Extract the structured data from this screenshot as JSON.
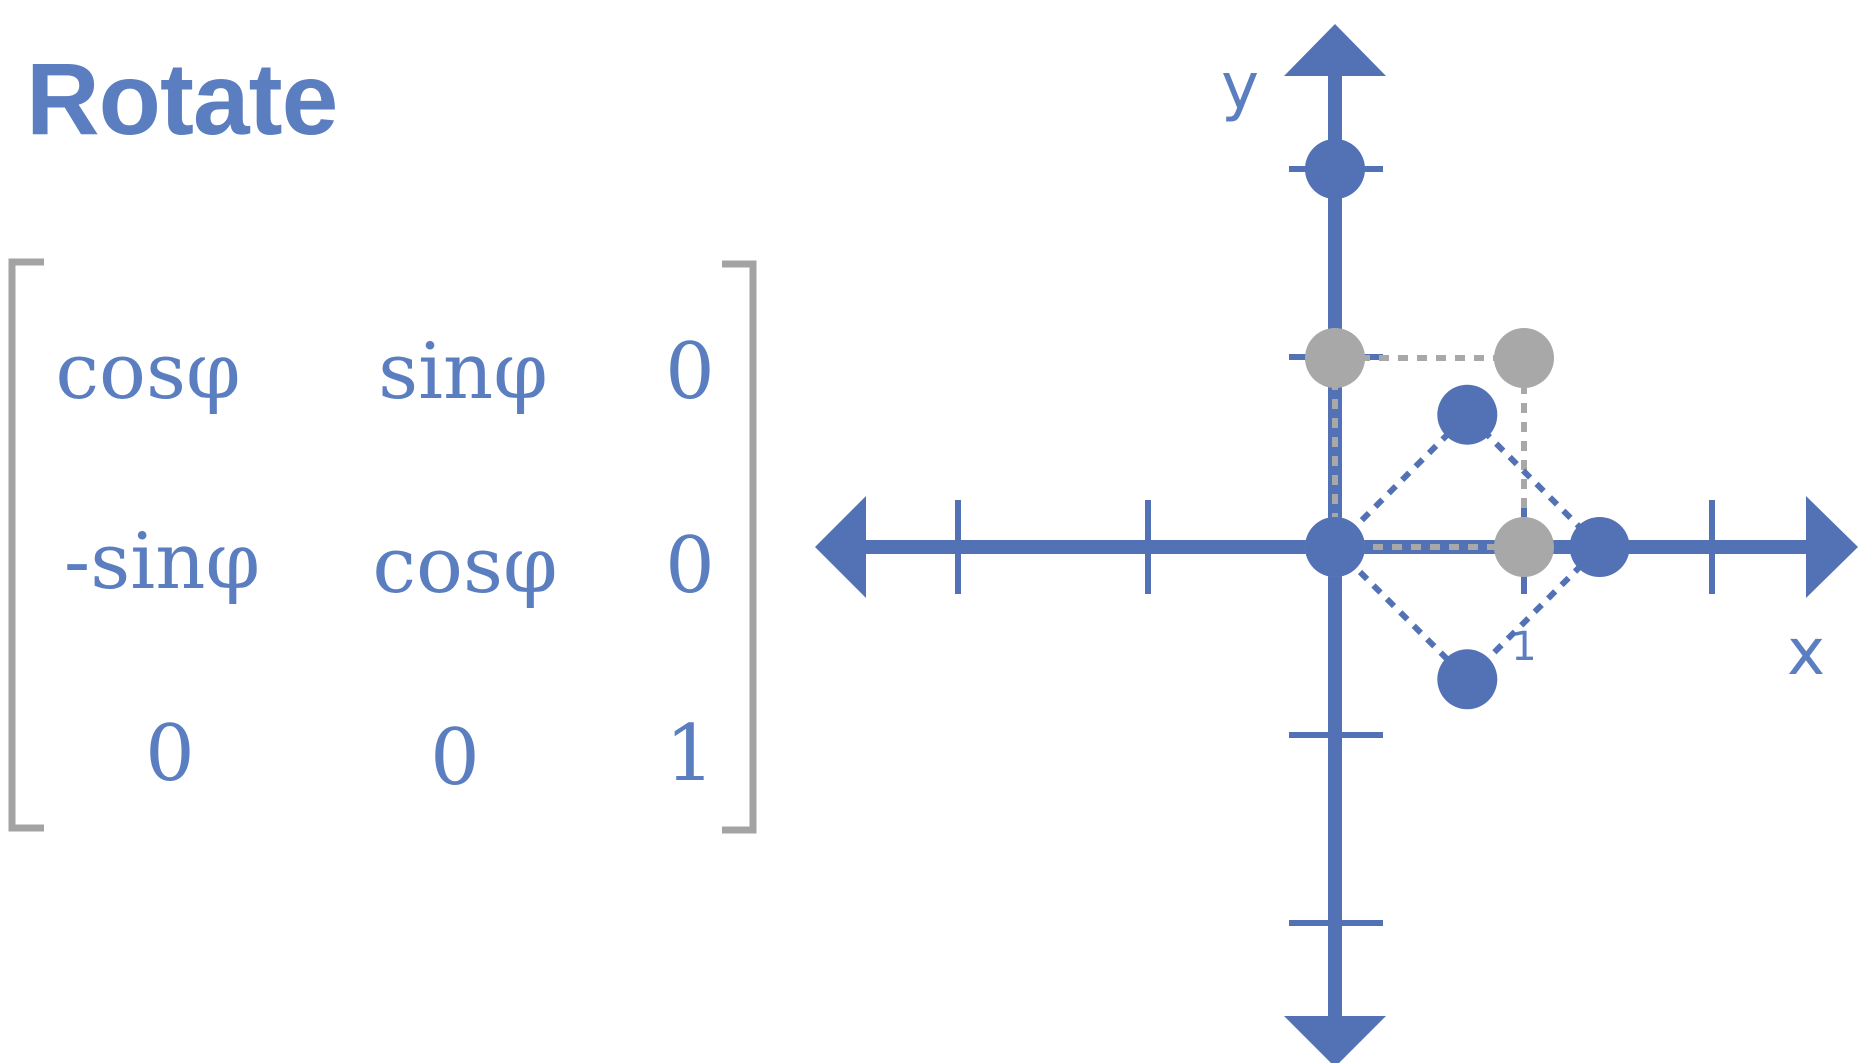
{
  "title": "Rotate",
  "matrix": {
    "rows": [
      [
        "cosφ",
        "sinφ",
        "0"
      ],
      [
        "-sinφ",
        "cosφ",
        "0"
      ],
      [
        "0",
        "0",
        "1"
      ]
    ]
  },
  "diagram": {
    "x_label": "x",
    "y_label": "y",
    "tick_label": "1",
    "colors": {
      "axis": "#5272b5",
      "rotated": "#5272b5",
      "original": "#a8a8a8",
      "text": "#5b7ec0",
      "bracket": "#a3a3a3"
    },
    "original_square": [
      [
        0,
        0
      ],
      [
        1,
        0
      ],
      [
        1,
        1
      ],
      [
        0,
        1
      ]
    ],
    "rotated_square": [
      [
        0,
        0
      ],
      [
        0.7,
        0.7
      ],
      [
        1.4,
        0
      ],
      [
        0.7,
        -0.7
      ]
    ],
    "extra_point": [
      0,
      2
    ]
  }
}
